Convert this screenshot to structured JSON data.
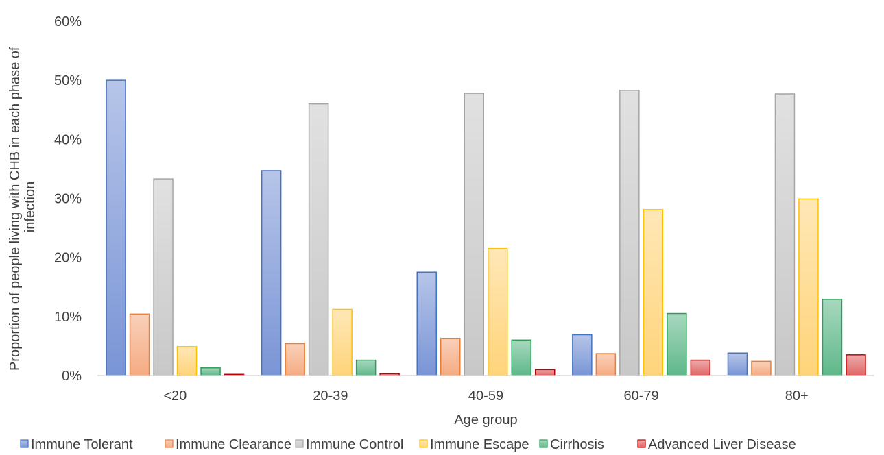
{
  "chart_data": {
    "type": "bar",
    "title": "",
    "xlabel": "Age group",
    "ylabel_lines": [
      "Proportion of people living with CHB in each phase of",
      "infection"
    ],
    "categories": [
      "<20",
      "20-39",
      "40-59",
      "60-79",
      "80+"
    ],
    "ylim": [
      0,
      60
    ],
    "yticks": [
      0,
      10,
      20,
      30,
      40,
      50,
      60
    ],
    "ytick_labels": [
      "0%",
      "10%",
      "20%",
      "30%",
      "40%",
      "50%",
      "60%"
    ],
    "grid": false,
    "legend_position": "bottom",
    "series": [
      {
        "name": "Immune Tolerant",
        "values": [
          50.0,
          34.7,
          17.5,
          6.9,
          3.8
        ],
        "color": "#7a95d6",
        "stroke": "#4472c4"
      },
      {
        "name": "Immune Clearance",
        "values": [
          10.4,
          5.4,
          6.3,
          3.7,
          2.4
        ],
        "color": "#f5ab82",
        "stroke": "#ed7d31"
      },
      {
        "name": "Immune Control",
        "values": [
          33.3,
          46.0,
          47.8,
          48.3,
          47.7
        ],
        "color": "#c8c8c8",
        "stroke": "#a5a5a5"
      },
      {
        "name": "Immune Escape",
        "values": [
          4.9,
          11.2,
          21.5,
          28.1,
          29.9
        ],
        "color": "#ffd47a",
        "stroke": "#ffc000"
      },
      {
        "name": "Cirrhosis",
        "values": [
          1.3,
          2.6,
          6.0,
          10.5,
          12.9
        ],
        "color": "#5fb88a",
        "stroke": "#2ca05a"
      },
      {
        "name": "Advanced Liver Disease",
        "values": [
          0.2,
          0.3,
          1.0,
          2.6,
          3.5
        ],
        "color": "#e06565",
        "stroke": "#c00000"
      }
    ]
  }
}
